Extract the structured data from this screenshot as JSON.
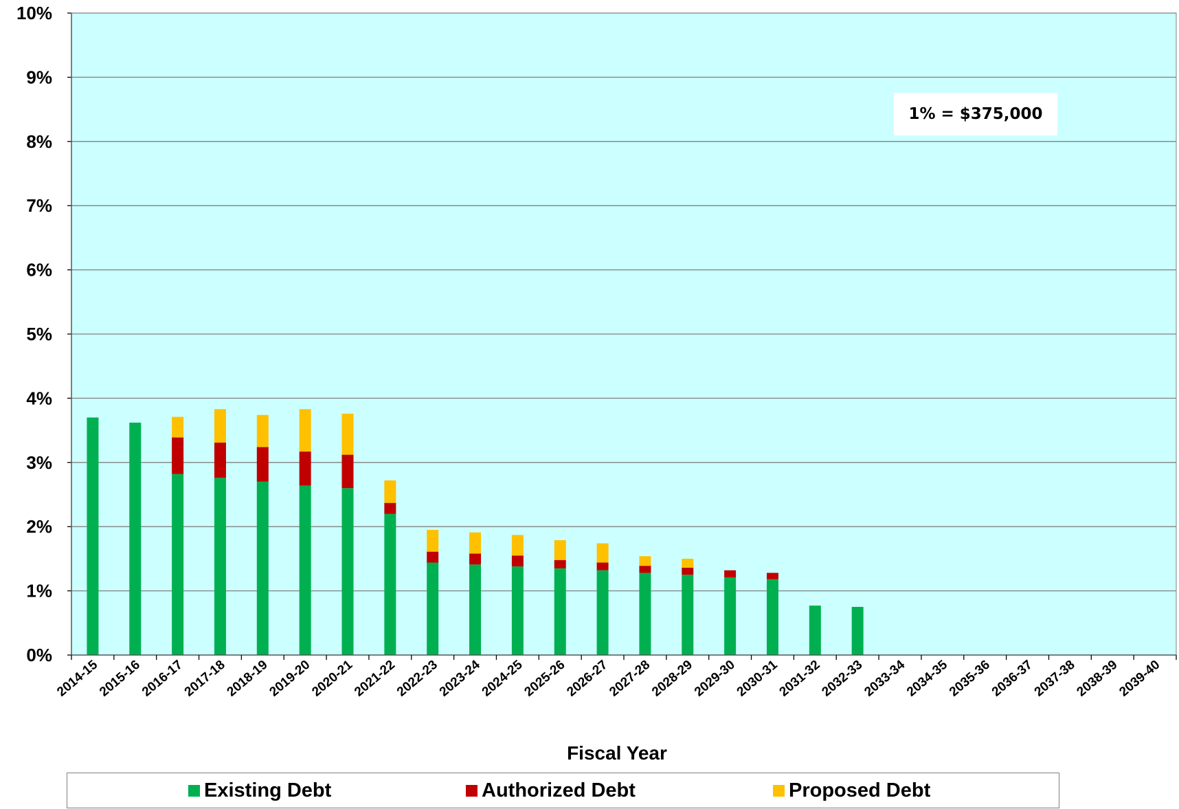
{
  "chart_data": {
    "type": "bar",
    "stacked": true,
    "xlabel": "Fiscal Year",
    "ylabel": "",
    "ylim": [
      0,
      10
    ],
    "y_tick_labels": [
      "0%",
      "1%",
      "2%",
      "3%",
      "4%",
      "5%",
      "6%",
      "7%",
      "8%",
      "9%",
      "10%"
    ],
    "grid": true,
    "legend_position": "bottom",
    "annotation": "1% = $375,000",
    "categories": [
      "2014-15",
      "2015-16",
      "2016-17",
      "2017-18",
      "2018-19",
      "2019-20",
      "2020-21",
      "2021-22",
      "2022-23",
      "2023-24",
      "2024-25",
      "2025-26",
      "2026-27",
      "2027-28",
      "2028-29",
      "2029-30",
      "2030-31",
      "2031-32",
      "2032-33",
      "2033-34",
      "2034-35",
      "2035-36",
      "2036-37",
      "2037-38",
      "2038-39",
      "2039-40"
    ],
    "series": [
      {
        "name": "Existing Debt",
        "color": "#00b050",
        "values": [
          3.7,
          3.62,
          2.82,
          2.76,
          2.7,
          2.64,
          2.6,
          2.2,
          1.44,
          1.41,
          1.38,
          1.35,
          1.32,
          1.28,
          1.25,
          1.21,
          1.18,
          0.77,
          0.75,
          0,
          0,
          0,
          0,
          0,
          0,
          0
        ]
      },
      {
        "name": "Authorized Debt",
        "color": "#c00000",
        "values": [
          0,
          0,
          0.57,
          0.55,
          0.54,
          0.53,
          0.52,
          0.17,
          0.17,
          0.17,
          0.17,
          0.13,
          0.12,
          0.11,
          0.11,
          0.11,
          0.1,
          0,
          0,
          0,
          0,
          0,
          0,
          0,
          0,
          0
        ]
      },
      {
        "name": "Proposed Debt",
        "color": "#ffc000",
        "values": [
          0,
          0,
          0.32,
          0.52,
          0.5,
          0.66,
          0.64,
          0.35,
          0.34,
          0.33,
          0.32,
          0.31,
          0.3,
          0.15,
          0.14,
          0,
          0,
          0,
          0,
          0,
          0,
          0,
          0,
          0,
          0,
          0
        ]
      }
    ]
  },
  "colors": {
    "plot_background": "#ccffff",
    "gridline": "#808080"
  }
}
